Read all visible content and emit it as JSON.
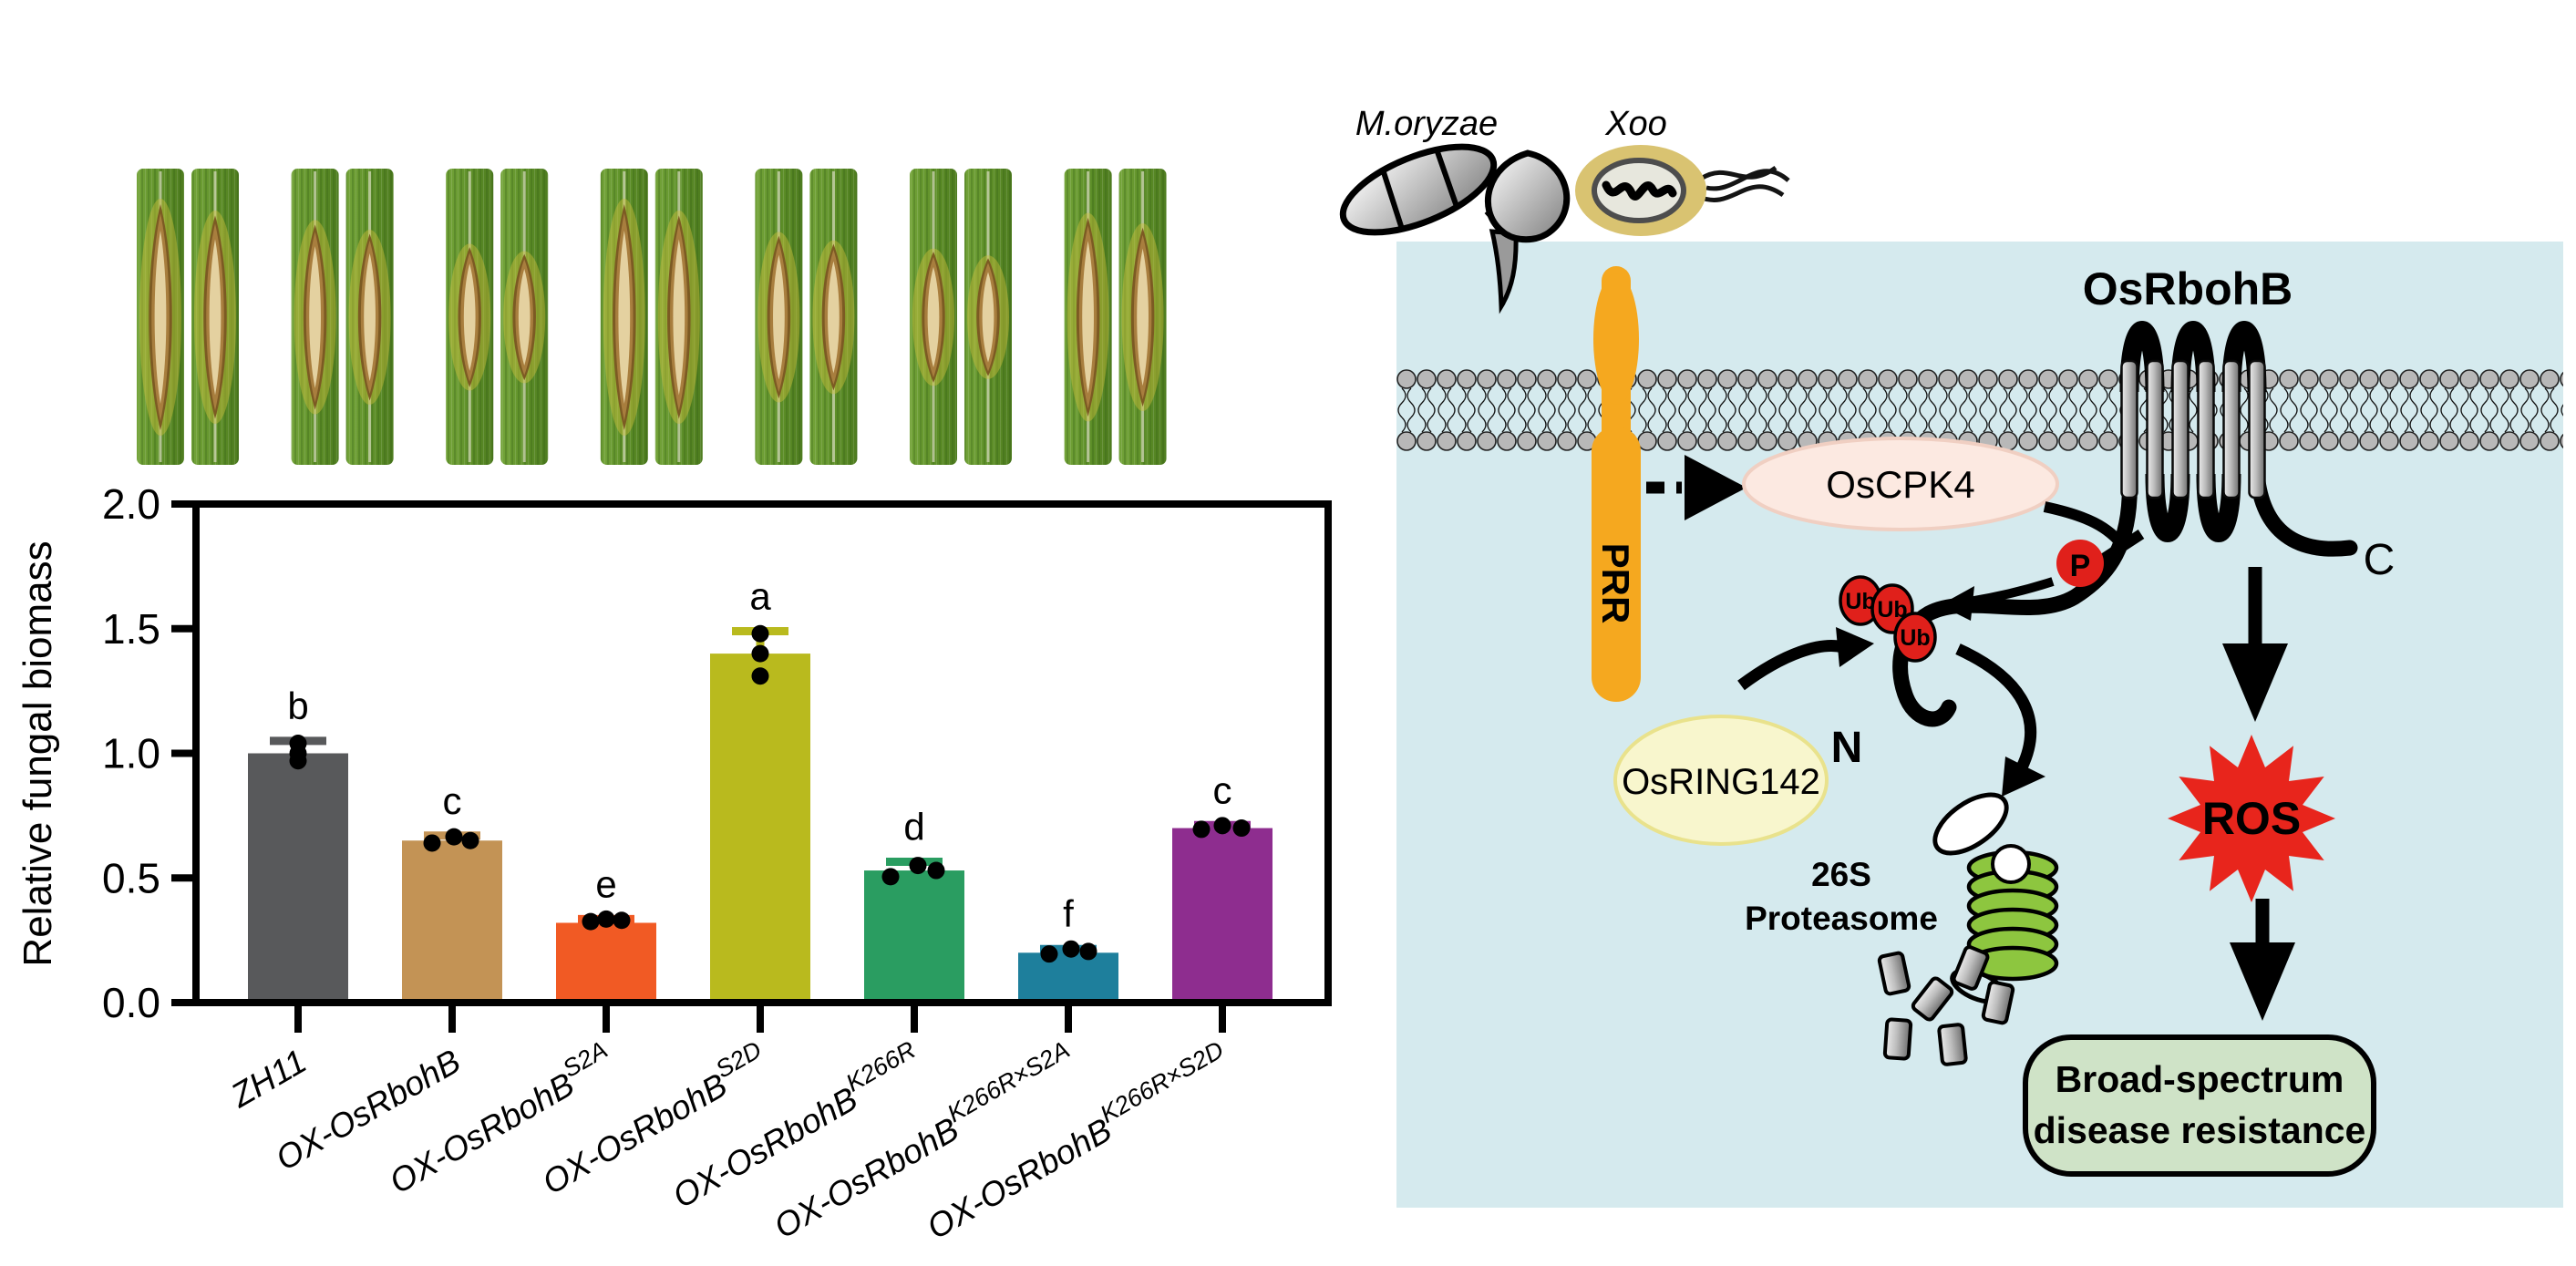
{
  "figure_type": "graphical-abstract",
  "chart_data": {
    "type": "bar",
    "title": "",
    "xlabel": "",
    "ylabel": "Relative fungal biomass",
    "ylim": [
      0.0,
      2.0
    ],
    "yticks": [
      "0.0",
      "0.5",
      "1.0",
      "1.5",
      "2.0"
    ],
    "grid": false,
    "legend": "none",
    "categories": [
      "ZH11",
      "OX-OsRbohB",
      "OX-OsRbohB S2A",
      "OX-OsRbohB S2D",
      "OX-OsRbohB K266R",
      "OX-OsRbohB K266R×S2A",
      "OX-OsRbohB K266R×S2D"
    ],
    "categories_rich": [
      {
        "base": "ZH11",
        "sup": ""
      },
      {
        "base": "OX-OsRbohB",
        "sup": ""
      },
      {
        "base": "OX-OsRbohB",
        "sup": "S2A"
      },
      {
        "base": "OX-OsRbohB",
        "sup": "S2D"
      },
      {
        "base": "OX-OsRbohB",
        "sup": "K266R"
      },
      {
        "base": "OX-OsRbohB",
        "sup": "K266R×S2A"
      },
      {
        "base": "OX-OsRbohB",
        "sup": "K266R×S2D"
      }
    ],
    "values": [
      1.0,
      0.65,
      0.32,
      1.4,
      0.53,
      0.2,
      0.7
    ],
    "errors": [
      0.05,
      0.02,
      0.015,
      0.09,
      0.035,
      0.015,
      0.012
    ],
    "sig_letters": [
      "b",
      "c",
      "e",
      "a",
      "d",
      "f",
      "c"
    ],
    "bar_colors": [
      "#58595b",
      "#c39355",
      "#f15a24",
      "#b9ba1e",
      "#2a9d61",
      "#1e7f9c",
      "#8e2d8f"
    ],
    "points": [
      [
        0.97,
        1.0,
        1.04
      ],
      [
        0.64,
        0.665,
        0.65
      ],
      [
        0.325,
        0.335,
        0.33
      ],
      [
        1.31,
        1.4,
        1.48
      ],
      [
        0.505,
        0.55,
        0.53
      ],
      [
        0.195,
        0.215,
        0.205
      ],
      [
        0.695,
        0.71,
        0.7
      ]
    ],
    "point_jitter": [
      [
        0,
        0,
        0
      ],
      [
        -22,
        2,
        20
      ],
      [
        -17,
        0,
        17
      ],
      [
        0,
        0,
        0
      ],
      [
        -26,
        4,
        24
      ],
      [
        -21,
        3,
        22
      ],
      [
        -23,
        0,
        21
      ]
    ]
  },
  "leaf_panel": {
    "pairs": 7,
    "lesion_scales": [
      1.0,
      0.82,
      0.62,
      1.0,
      0.72,
      0.58,
      0.88
    ]
  },
  "diagram": {
    "pathogen_fungus": "M.oryzae",
    "pathogen_bacterium": "Xoo",
    "receptor": "PRR",
    "kinase": "OsCPK4",
    "nadph_oxidase": "OsRbohB",
    "e3_ligase": "OsRING142",
    "ubiquitin": "Ub",
    "phosphate": "P",
    "n_terminus": "N",
    "c_terminus": "C",
    "proteasome_line1": "26S",
    "proteasome_line2": "Proteasome",
    "ros": "ROS",
    "outcome_line1": "Broad-spectrum",
    "outcome_line2": "disease resistance",
    "colors": {
      "cell_background": "#d5eaee",
      "membrane_head": "#b8b8b8",
      "prr": "#f5a81f",
      "oscpk4_fill": "#fce9e1",
      "osring142_fill": "#f8f6cd",
      "ubiquitin_red": "#e0201b",
      "ros_red": "#e8251c",
      "ros_text": "#ffee00",
      "proteasome_green": "#8dc63f",
      "outcome_fill": "#cfe3c7"
    }
  }
}
